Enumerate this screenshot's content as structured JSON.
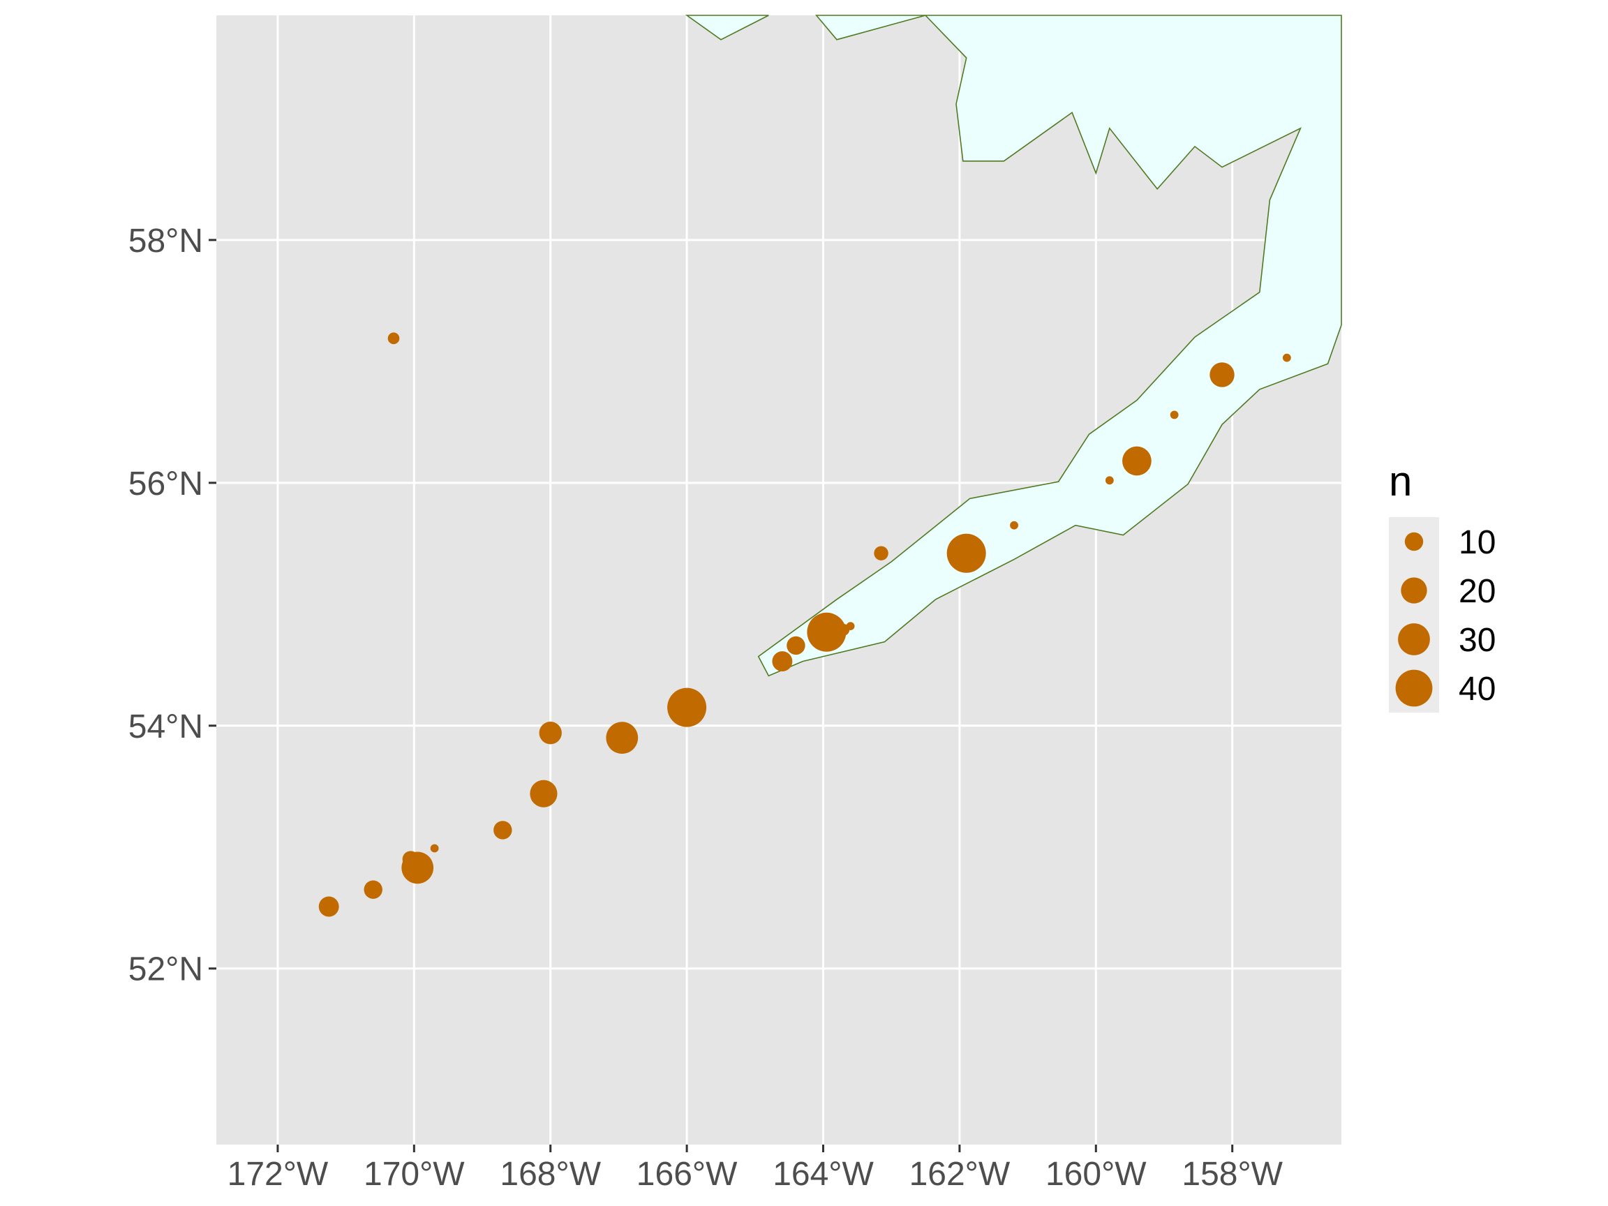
{
  "colors": {
    "panel_background": "#e5e5e5",
    "grid": "#ffffff",
    "land_fill": "#ebffff",
    "land_outline": "#4f7a1f",
    "point_fill": "#c06a00",
    "axis_text": "#4d4d4d"
  },
  "chart_data": {
    "type": "scatter",
    "subtype": "bubble-map",
    "title": "",
    "xlabel": "",
    "ylabel": "",
    "xlim": [
      -172.9,
      -156.4
    ],
    "ylim": [
      50.55,
      59.85
    ],
    "x_ticks": [
      {
        "value": -172,
        "label": "172°W"
      },
      {
        "value": -170,
        "label": "170°W"
      },
      {
        "value": -168,
        "label": "168°W"
      },
      {
        "value": -166,
        "label": "166°W"
      },
      {
        "value": -164,
        "label": "164°W"
      },
      {
        "value": -162,
        "label": "162°W"
      },
      {
        "value": -160,
        "label": "160°W"
      },
      {
        "value": -158,
        "label": "158°W"
      }
    ],
    "y_ticks": [
      {
        "value": 52,
        "label": "52°N"
      },
      {
        "value": 54,
        "label": "54°N"
      },
      {
        "value": 56,
        "label": "56°N"
      },
      {
        "value": 58,
        "label": "58°N"
      }
    ],
    "grid": true,
    "legend": {
      "title": "n",
      "placement": "right",
      "entries": [
        {
          "label": "10",
          "value": 10
        },
        {
          "label": "20",
          "value": 20
        },
        {
          "label": "30",
          "value": 30
        },
        {
          "label": "40",
          "value": 40
        }
      ]
    },
    "land_polygons": [
      [
        [
          -166.0,
          59.88
        ],
        [
          -165.5,
          59.65
        ],
        [
          -164.8,
          59.88
        ]
      ],
      [
        [
          -164.1,
          59.88
        ],
        [
          -163.8,
          59.65
        ],
        [
          -162.5,
          59.85
        ],
        [
          -161.9,
          59.5
        ],
        [
          -162.05,
          59.12
        ],
        [
          -161.95,
          58.65
        ],
        [
          -161.35,
          58.65
        ],
        [
          -160.35,
          59.05
        ],
        [
          -160.0,
          58.55
        ],
        [
          -159.8,
          58.92
        ],
        [
          -159.1,
          58.42
        ],
        [
          -158.55,
          58.77
        ],
        [
          -158.15,
          58.6
        ],
        [
          -157.0,
          58.92
        ],
        [
          -157.45,
          58.33
        ],
        [
          -157.6,
          57.57
        ],
        [
          -158.55,
          57.2
        ],
        [
          -159.4,
          56.68
        ],
        [
          -160.1,
          56.4
        ],
        [
          -160.55,
          56.01
        ],
        [
          -161.85,
          55.87
        ],
        [
          -163.0,
          55.35
        ],
        [
          -163.8,
          55.04
        ],
        [
          -164.95,
          54.57
        ],
        [
          -164.8,
          54.41
        ],
        [
          -164.3,
          54.53
        ],
        [
          -163.1,
          54.69
        ],
        [
          -162.35,
          55.04
        ],
        [
          -161.2,
          55.37
        ],
        [
          -160.3,
          55.65
        ],
        [
          -159.6,
          55.57
        ],
        [
          -158.65,
          55.99
        ],
        [
          -158.15,
          56.48
        ],
        [
          -157.6,
          56.77
        ],
        [
          -156.6,
          56.98
        ],
        [
          -156.38,
          57.3
        ],
        [
          -156.38,
          59.88
        ]
      ]
    ],
    "points": [
      {
        "lon": -171.25,
        "lat": 52.51,
        "n": 12
      },
      {
        "lon": -170.6,
        "lat": 52.65,
        "n": 10
      },
      {
        "lon": -170.05,
        "lat": 52.9,
        "n": 8
      },
      {
        "lon": -169.95,
        "lat": 52.83,
        "n": 30
      },
      {
        "lon": -169.7,
        "lat": 52.99,
        "n": 2
      },
      {
        "lon": -170.3,
        "lat": 57.19,
        "n": 4
      },
      {
        "lon": -168.7,
        "lat": 53.14,
        "n": 10
      },
      {
        "lon": -168.1,
        "lat": 53.44,
        "n": 22
      },
      {
        "lon": -168.0,
        "lat": 53.94,
        "n": 15
      },
      {
        "lon": -166.95,
        "lat": 53.9,
        "n": 30
      },
      {
        "lon": -166.0,
        "lat": 54.15,
        "n": 45
      },
      {
        "lon": -164.6,
        "lat": 54.53,
        "n": 12
      },
      {
        "lon": -164.4,
        "lat": 54.66,
        "n": 10
      },
      {
        "lon": -163.95,
        "lat": 54.77,
        "n": 45
      },
      {
        "lon": -163.7,
        "lat": 54.79,
        "n": 4
      },
      {
        "lon": -163.6,
        "lat": 54.82,
        "n": 2
      },
      {
        "lon": -163.15,
        "lat": 55.42,
        "n": 6
      },
      {
        "lon": -161.9,
        "lat": 55.42,
        "n": 45
      },
      {
        "lon": -161.2,
        "lat": 55.65,
        "n": 2
      },
      {
        "lon": -159.8,
        "lat": 56.02,
        "n": 2
      },
      {
        "lon": -159.4,
        "lat": 56.18,
        "n": 25
      },
      {
        "lon": -158.85,
        "lat": 56.56,
        "n": 2
      },
      {
        "lon": -158.15,
        "lat": 56.89,
        "n": 18
      },
      {
        "lon": -157.2,
        "lat": 57.03,
        "n": 2
      }
    ]
  }
}
